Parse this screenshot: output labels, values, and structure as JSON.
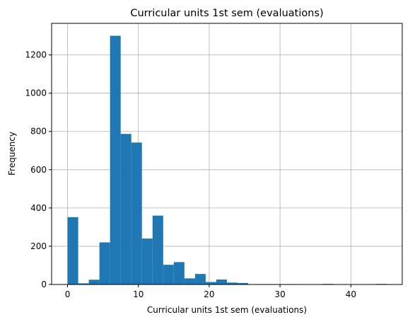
{
  "chart_data": {
    "type": "bar",
    "title": "Curricular units 1st sem (evaluations)",
    "xlabel": "Curricular units 1st sem (evaluations)",
    "ylabel": "Frequency",
    "xlim": [
      -2.25,
      47.25
    ],
    "ylim": [
      0,
      1365
    ],
    "bin_width": 1.5,
    "bin_start": 0,
    "x_ticks": [
      0,
      10,
      20,
      30,
      40
    ],
    "y_ticks": [
      0,
      200,
      400,
      600,
      800,
      1000,
      1200
    ],
    "grid": true,
    "bar_color": "#1f77b4",
    "values": [
      352,
      6,
      25,
      220,
      1300,
      787,
      742,
      240,
      360,
      103,
      117,
      32,
      55,
      13,
      26,
      10,
      8,
      2,
      2,
      2,
      2,
      2,
      1,
      1,
      3,
      1,
      1,
      1,
      1,
      3
    ]
  }
}
